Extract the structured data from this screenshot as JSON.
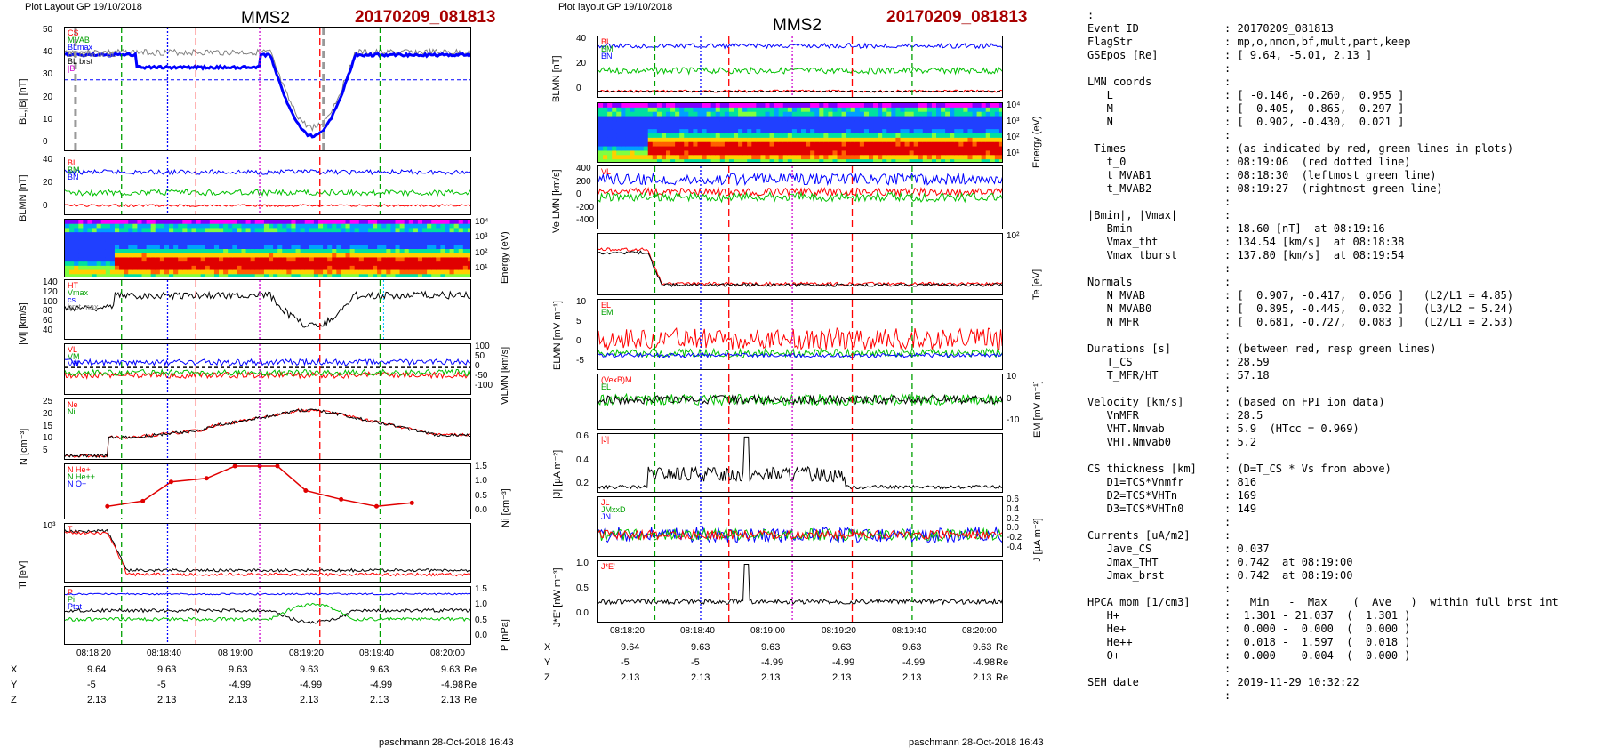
{
  "left": {
    "header": "Plot Layout GP 19/10/2018",
    "title": "MMS2",
    "event": "20170209_081813",
    "footer": "paschmann 28-Oct-2018 16:43",
    "time_labels": [
      "08:18:20",
      "08:18:40",
      "08:19:00",
      "08:19:20",
      "08:19:40",
      "08:20:00"
    ],
    "pos_rows": [
      {
        "label": "X",
        "values": [
          "9.64",
          "9.63",
          "9.63",
          "9.63",
          "9.63",
          "9.63"
        ],
        "unit": "Re"
      },
      {
        "label": "Y",
        "values": [
          "-5",
          "-5",
          "-4.99",
          "-4.99",
          "-4.99",
          "-4.98"
        ],
        "unit": "Re"
      },
      {
        "label": "Z",
        "values": [
          "2.13",
          "2.13",
          "2.13",
          "2.13",
          "2.13",
          "2.13"
        ],
        "unit": "Re"
      }
    ],
    "panels": [
      {
        "id": "bl",
        "ylabel": "BL,|B| [nT]",
        "yticks": [
          "50",
          "40",
          "30",
          "20",
          "10",
          "0"
        ],
        "legend": [
          "CS",
          "MVAB",
          "BLmax",
          "BL 80% of BL",
          "BL brst",
          "|B|"
        ]
      },
      {
        "id": "blmn",
        "ylabel": "BLMN [nT]",
        "yticks": [
          "40",
          "20",
          "0"
        ],
        "legend": [
          "BL",
          "BM",
          "BN"
        ]
      },
      {
        "id": "espec",
        "ylabel_r": "Energy (eV)",
        "yticks_r": [
          "10⁴",
          "10³",
          "10²",
          "10¹"
        ]
      },
      {
        "id": "vi",
        "ylabel": "|Vi| [km/s]",
        "yticks": [
          "140",
          "120",
          "100",
          "80",
          "60",
          "40"
        ],
        "legend": [
          "HT",
          "Vmax",
          "cs",
          "brst max"
        ]
      },
      {
        "id": "vilmn",
        "ylabel_r": "ViLMN [km/s]",
        "yticks_r": [
          "100",
          "50",
          "0",
          "-50",
          "-100"
        ],
        "legend": [
          "VL",
          "VM",
          "VN"
        ]
      },
      {
        "id": "n",
        "ylabel": "N [cm⁻³]",
        "yticks": [
          "25",
          "20",
          "15",
          "10",
          "5"
        ],
        "legend": [
          "Ne",
          "Ni"
        ]
      },
      {
        "id": "ni",
        "ylabel_r": "Ni [cm⁻³]",
        "yticks_r": [
          "1.5",
          "1.0",
          "0.5",
          "0.0"
        ],
        "legend": [
          "N He+",
          "N He++",
          "N O+"
        ]
      },
      {
        "id": "ti",
        "ylabel": "Ti [eV]",
        "yticks": [
          "10³"
        ],
        "legend": [
          "T⊥"
        ]
      },
      {
        "id": "p",
        "ylabel_r": "P [nPa]",
        "yticks_r": [
          "1.5",
          "1.0",
          "0.5",
          "0.0"
        ],
        "legend": [
          "P",
          "Pi",
          "Ptot"
        ]
      }
    ]
  },
  "middle": {
    "header": "Plot layout GP 19/10/2018",
    "title": "MMS2",
    "event": "20170209_081813",
    "footer": "paschmann 28-Oct-2018 16:43",
    "time_labels": [
      "08:18:20",
      "08:18:40",
      "08:19:00",
      "08:19:20",
      "08:19:40",
      "08:20:00"
    ],
    "pos_rows": [
      {
        "label": "X",
        "values": [
          "9.64",
          "9.63",
          "9.63",
          "9.63",
          "9.63",
          "9.63"
        ],
        "unit": "Re"
      },
      {
        "label": "Y",
        "values": [
          "-5",
          "-5",
          "-4.99",
          "-4.99",
          "-4.99",
          "-4.98"
        ],
        "unit": "Re"
      },
      {
        "label": "Z",
        "values": [
          "2.13",
          "2.13",
          "2.13",
          "2.13",
          "2.13",
          "2.13"
        ],
        "unit": "Re"
      }
    ],
    "panels": [
      {
        "id": "blmn",
        "ylabel": "BLMN [nT]",
        "yticks": [
          "40",
          "20",
          "0"
        ],
        "legend": [
          "BL",
          "BM",
          "BN"
        ]
      },
      {
        "id": "espec",
        "ylabel_r": "Energy (eV)",
        "yticks_r": [
          "10⁴",
          "10³",
          "10²",
          "10¹"
        ]
      },
      {
        "id": "ve",
        "ylabel": "Ve LMN [km/s]",
        "yticks": [
          "400",
          "200",
          "0",
          "-200",
          "-400"
        ],
        "legend": [
          "VL"
        ]
      },
      {
        "id": "te",
        "ylabel_r": "Te [eV]",
        "yticks_r": [
          "10²"
        ]
      },
      {
        "id": "e",
        "ylabel": "ELMN [mV m⁻¹]",
        "yticks": [
          "10",
          "5",
          "0",
          "-5"
        ],
        "legend": [
          "EL",
          "EM"
        ]
      },
      {
        "id": "em",
        "ylabel_r": "EM [mV m⁻¹]",
        "yticks_r": [
          "10",
          "0",
          "-10"
        ],
        "legend": [
          "(VexB)M",
          "EL"
        ]
      },
      {
        "id": "j",
        "ylabel": "|J| [µA m⁻²]",
        "yticks": [
          "0.6",
          "0.4",
          "0.2"
        ],
        "legend": [
          "|J|"
        ]
      },
      {
        "id": "jlmn",
        "ylabel_r": "J [µA m⁻²]",
        "yticks_r": [
          "0.6",
          "0.4",
          "0.2",
          "0.0",
          "-0.2",
          "-0.4"
        ],
        "legend": [
          "JL",
          "JMxxD",
          "JN"
        ]
      },
      {
        "id": "je",
        "ylabel": "J*E' [nW m⁻³]",
        "yticks": [
          "1.0",
          "0.5",
          "0.0"
        ],
        "legend": [
          "J*E'"
        ]
      }
    ]
  },
  "info": {
    "lead": ":",
    "rows": [
      [
        "Event ID",
        ": 20170209_081813"
      ],
      [
        "FlagStr",
        ": mp,o,nmon,bf,mult,part,keep"
      ],
      [
        "GSEpos [Re]",
        ": [ 9.64, -5.01, 2.13 ]"
      ],
      [
        "",
        ":"
      ],
      [
        "LMN coords",
        ":"
      ],
      [
        "   L",
        ": [ -0.146, -0.260,  0.955 ]"
      ],
      [
        "   M",
        ": [  0.405,  0.865,  0.297 ]"
      ],
      [
        "   N",
        ": [  0.902, -0.430,  0.021 ]"
      ],
      [
        "",
        ":"
      ],
      [
        " Times",
        ": (as indicated by red, green lines in plots)"
      ],
      [
        "   t_0",
        ": 08:19:06  (red dotted line)"
      ],
      [
        "   t_MVAB1",
        ": 08:18:30  (leftmost green line)"
      ],
      [
        "   t_MVAB2",
        ": 08:19:27  (rightmost green line)"
      ],
      [
        "",
        ":"
      ],
      [
        "|Bmin|, |Vmax|",
        ":"
      ],
      [
        "   Bmin",
        ": 18.60 [nT]  at 08:19:16"
      ],
      [
        "   Vmax_tht",
        ": 134.54 [km/s]  at 08:18:38"
      ],
      [
        "   Vmax_tburst",
        ": 137.80 [km/s]  at 08:19:54"
      ],
      [
        "",
        ":"
      ],
      [
        "Normals",
        ":"
      ],
      [
        "   N MVAB",
        ": [  0.907, -0.417,  0.056 ]   (L2/L1 = 4.85)"
      ],
      [
        "   N MVAB0",
        ": [  0.895, -0.445,  0.032 ]   (L3/L2 = 5.24)"
      ],
      [
        "   N MFR",
        ": [  0.681, -0.727,  0.083 ]   (L2/L1 = 2.53)"
      ],
      [
        "",
        ":"
      ],
      [
        "Durations [s]",
        ": (between red, resp green lines)"
      ],
      [
        "   T_CS",
        ": 28.59"
      ],
      [
        "   T_MFR/HT",
        ": 57.18"
      ],
      [
        "",
        ":"
      ],
      [
        "Velocity [km/s]",
        ": (based on FPI ion data)"
      ],
      [
        "   VnMFR",
        ": 28.5"
      ],
      [
        "   VHT.Nmvab",
        ": 5.9  (HTcc = 0.969)"
      ],
      [
        "   VHT.Nmvab0",
        ": 5.2"
      ],
      [
        "",
        ":"
      ],
      [
        "CS thickness [km]",
        ": (D=T_CS * Vs from above)"
      ],
      [
        "   D1=TCS*Vnmfr",
        ": 816"
      ],
      [
        "   D2=TCS*VHTn",
        ": 169"
      ],
      [
        "   D3=TCS*VHTn0",
        ": 149"
      ],
      [
        "",
        ":"
      ],
      [
        "Currents [uA/m2]",
        ":"
      ],
      [
        "   Jave_CS",
        ": 0.037"
      ],
      [
        "   Jmax_THT",
        ": 0.742  at 08:19:00"
      ],
      [
        "   Jmax_brst",
        ": 0.742  at 08:19:00"
      ],
      [
        "",
        ":"
      ],
      [
        "HPCA mom [1/cm3]",
        ":   Min   -  Max    (  Ave   )  within full brst int"
      ],
      [
        "   H+",
        ":  1.301 - 21.037  (  1.301 )"
      ],
      [
        "   He+",
        ":  0.000 -  0.000  (  0.000 )"
      ],
      [
        "   He++",
        ":  0.018 -  1.597  (  0.018 )"
      ],
      [
        "   O+",
        ":  0.000 -  0.004  (  0.000 )"
      ],
      [
        "",
        ":"
      ],
      [
        "SEH date",
        ": 2019-11-29 10:32:22"
      ],
      [
        "",
        ":"
      ]
    ]
  },
  "chart_data": [
    {
      "type": "line",
      "title": "MMS2",
      "subtitle": "20170209_081813",
      "x": [
        "08:18:20",
        "08:18:40",
        "08:19:00",
        "08:19:20",
        "08:19:40",
        "08:20:00"
      ],
      "panels": [
        {
          "ylabel": "BL,|B| [nT]",
          "ylim": [
            0,
            55
          ],
          "series": [
            {
              "name": "BL brst",
              "t": [
                0,
                8,
                15,
                25,
                35,
                45,
                55,
                60,
                66,
                70,
                74,
                80,
                90,
                100,
                115
              ],
              "values": [
                50,
                50,
                46,
                44,
                43,
                43,
                40,
                35,
                18,
                13,
                22,
                38,
                50,
                51,
                49
              ]
            },
            {
              "name": "|B|",
              "t": [
                0,
                8,
                15,
                25,
                35,
                45,
                55,
                60,
                66,
                70,
                74,
                80,
                90,
                100,
                115
              ],
              "values": [
                52,
                52,
                49,
                48,
                46,
                45,
                42,
                37,
                22,
                18,
                25,
                40,
                51,
                52,
                50
              ]
            }
          ]
        },
        {
          "ylabel": "N [cm⁻³]",
          "ylim": [
            0,
            28
          ],
          "series": [
            {
              "name": "Ni",
              "t": [
                0,
                8,
                12,
                15,
                22,
                30,
                40,
                50,
                60,
                65,
                70,
                80,
                90,
                100,
                115
              ],
              "values": [
                2,
                2,
                6,
                10,
                11,
                12,
                17,
                18,
                21,
                25,
                24,
                17,
                13,
                12,
                11
              ]
            }
          ]
        },
        {
          "ylabel": "Ni [cm⁻³]",
          "ylim": [
            0,
            1.6
          ],
          "series": [
            {
              "name": "N He++",
              "t": [
                12,
                22,
                30,
                40,
                48,
                55,
                60,
                68,
                78,
                88,
                98
              ],
              "values": [
                0.4,
                0.55,
                1.1,
                1.2,
                1.55,
                1.55,
                1.55,
                0.85,
                0.6,
                0.4,
                0.5
              ]
            }
          ]
        }
      ]
    },
    {
      "type": "line",
      "title": "MMS2",
      "subtitle": "20170209_081813",
      "x": [
        "08:18:20",
        "08:18:40",
        "08:19:00",
        "08:19:20",
        "08:19:40",
        "08:20:00"
      ],
      "panels": [
        {
          "ylabel": "|J| [µA m⁻²]",
          "ylim": [
            0,
            0.75
          ],
          "series": [
            {
              "name": "|J|",
              "t": [
                0,
                15,
                25,
                35,
                40,
                42,
                45,
                50,
                60,
                70,
                80,
                90,
                100,
                115
              ],
              "values": [
                0.02,
                0.03,
                0.1,
                0.2,
                0.3,
                0.742,
                0.2,
                0.25,
                0.1,
                0.05,
                0.04,
                0.03,
                0.03,
                0.02
              ]
            }
          ]
        },
        {
          "ylabel": "J*E' [nW m⁻³]",
          "ylim": [
            -0.3,
            1.1
          ],
          "series": [
            {
              "name": "J*E'",
              "t": [
                0,
                20,
                38,
                40,
                42,
                44,
                50,
                60,
                70,
                80,
                100,
                115
              ],
              "values": [
                0,
                0,
                0.1,
                1.0,
                0.8,
                0.1,
                0.05,
                0.05,
                0.1,
                0,
                0,
                0
              ]
            }
          ]
        }
      ]
    }
  ]
}
